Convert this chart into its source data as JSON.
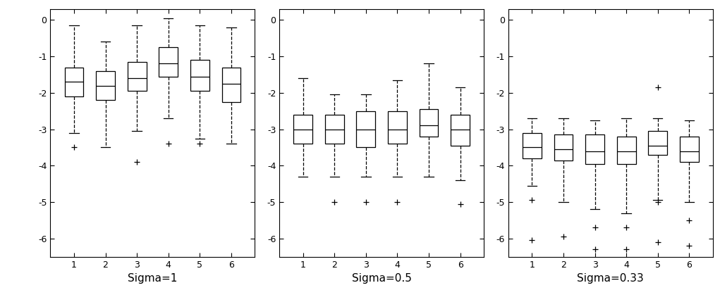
{
  "panels": [
    {
      "title": "Sigma=1",
      "ylim": [
        -6.5,
        0.3
      ],
      "yticks": [
        0,
        -1,
        -2,
        -3,
        -4,
        -5,
        -6
      ],
      "yticklabels": [
        "0",
        "-1",
        "-2",
        "-3",
        "-4",
        "-5",
        "-6"
      ],
      "boxes": [
        {
          "whislo": -3.1,
          "q1": -2.1,
          "med": -1.7,
          "q3": -1.3,
          "whishi": -0.15,
          "fliers": [
            -3.5
          ]
        },
        {
          "whislo": -3.5,
          "q1": -2.2,
          "med": -1.8,
          "q3": -1.4,
          "whishi": -0.6,
          "fliers": []
        },
        {
          "whislo": -3.05,
          "q1": -1.95,
          "med": -1.6,
          "q3": -1.15,
          "whishi": -0.15,
          "fliers": [
            -3.9
          ]
        },
        {
          "whislo": -2.7,
          "q1": -1.55,
          "med": -1.2,
          "q3": -0.75,
          "whishi": 0.05,
          "fliers": [
            -3.4
          ]
        },
        {
          "whislo": -3.25,
          "q1": -1.95,
          "med": -1.55,
          "q3": -1.1,
          "whishi": -0.15,
          "fliers": [
            -3.4
          ]
        },
        {
          "whislo": -3.4,
          "q1": -2.25,
          "med": -1.75,
          "q3": -1.3,
          "whishi": -0.2,
          "fliers": []
        }
      ]
    },
    {
      "title": "Sigma=0.5",
      "ylim": [
        -6.5,
        0.3
      ],
      "yticks": [
        0,
        -1,
        -2,
        -3,
        -4,
        -5,
        -6
      ],
      "yticklabels": [
        "0",
        "-1",
        "-2",
        "-3",
        "-4",
        "-5",
        "-6"
      ],
      "boxes": [
        {
          "whislo": -4.3,
          "q1": -3.4,
          "med": -3.0,
          "q3": -2.6,
          "whishi": -1.6,
          "fliers": []
        },
        {
          "whislo": -4.3,
          "q1": -3.4,
          "med": -3.0,
          "q3": -2.6,
          "whishi": -2.05,
          "fliers": [
            -5.0
          ]
        },
        {
          "whislo": -4.3,
          "q1": -3.5,
          "med": -3.0,
          "q3": -2.5,
          "whishi": -2.05,
          "fliers": [
            -5.0
          ]
        },
        {
          "whislo": -4.3,
          "q1": -3.4,
          "med": -3.0,
          "q3": -2.5,
          "whishi": -1.65,
          "fliers": [
            -5.0
          ]
        },
        {
          "whislo": -4.3,
          "q1": -3.2,
          "med": -2.9,
          "q3": -2.45,
          "whishi": -1.2,
          "fliers": []
        },
        {
          "whislo": -4.4,
          "q1": -3.45,
          "med": -3.0,
          "q3": -2.6,
          "whishi": -1.85,
          "fliers": [
            -5.05
          ]
        }
      ]
    },
    {
      "title": "Sigma=0.33",
      "ylim": [
        -6.5,
        0.3
      ],
      "yticks": [
        0,
        -1,
        -2,
        -3,
        -4,
        -5,
        -6
      ],
      "yticklabels": [
        "0",
        "-1",
        "-2",
        "-3",
        "-4",
        "-5",
        "-6"
      ],
      "boxes": [
        {
          "whislo": -4.55,
          "q1": -3.8,
          "med": -3.5,
          "q3": -3.1,
          "whishi": -2.7,
          "fliers": [
            -4.95,
            -6.05
          ]
        },
        {
          "whislo": -5.0,
          "q1": -3.85,
          "med": -3.55,
          "q3": -3.15,
          "whishi": -2.7,
          "fliers": [
            -5.95
          ]
        },
        {
          "whislo": -5.2,
          "q1": -3.95,
          "med": -3.6,
          "q3": -3.15,
          "whishi": -2.75,
          "fliers": [
            -5.7,
            -6.3
          ]
        },
        {
          "whislo": -5.3,
          "q1": -3.95,
          "med": -3.6,
          "q3": -3.2,
          "whishi": -2.7,
          "fliers": [
            -5.7,
            -6.3
          ]
        },
        {
          "whislo": -4.95,
          "q1": -3.7,
          "med": -3.45,
          "q3": -3.05,
          "whishi": -2.7,
          "fliers": [
            -5.0,
            -6.1,
            -1.85
          ]
        },
        {
          "whislo": -5.0,
          "q1": -3.9,
          "med": -3.6,
          "q3": -3.2,
          "whishi": -2.75,
          "fliers": [
            -5.5,
            -6.2
          ]
        }
      ]
    }
  ],
  "figsize": [
    10.21,
    4.29
  ],
  "dpi": 100,
  "box_width": 0.6,
  "flier_marker": "+",
  "flier_size": 6,
  "linewidth": 0.9,
  "facecolor": "white",
  "edgecolor": "black",
  "background_color": "white",
  "tick_fontsize": 9,
  "label_fontsize": 11
}
